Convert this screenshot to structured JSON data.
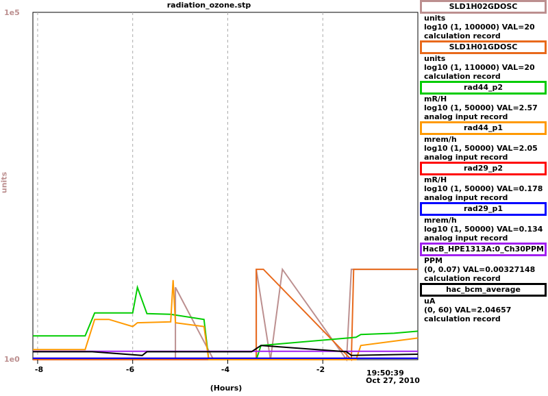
{
  "chart_data": {
    "type": "line",
    "title": "radiation_ozone.stp",
    "xlabel": "(Hours)",
    "ylabel": "units",
    "ylim": [
      1,
      100000
    ],
    "yscale": "log",
    "yticks": [
      "1e0",
      "1e5"
    ],
    "xticks": [
      "-8",
      "-6",
      "-4",
      "-2"
    ],
    "xlim": [
      -8.1,
      0
    ],
    "end_time": "19:50:39",
    "end_date": "Oct 27, 2010",
    "grid": true,
    "series": [
      {
        "name": "SLD1H02GDOSC",
        "color": "#bc8f8f",
        "x": [
          -8.1,
          -5.1,
          -5.1,
          -4.3,
          -3.4,
          -3.4,
          -3.1,
          -2.85,
          -1.5,
          -1.4,
          -1.3,
          -0.1,
          0
        ],
        "values": [
          1,
          1,
          11,
          1,
          1,
          20,
          1,
          20,
          1,
          20,
          20,
          20,
          20
        ]
      },
      {
        "name": "SLD1H01GDOSC",
        "color": "#e8691b",
        "x": [
          -8.1,
          -3.4,
          -3.4,
          -3.25,
          -1.4,
          -1.35,
          0
        ],
        "values": [
          1,
          1,
          20,
          20,
          1,
          20,
          20
        ]
      },
      {
        "name": "rad44_p2",
        "color": "#00cc00",
        "x": [
          -8.1,
          -7.0,
          -6.8,
          -6.0,
          -5.9,
          -5.7,
          -5.2,
          -4.5,
          -4.4,
          -3.4,
          -3.3,
          -1.3,
          -1.2,
          -0.5,
          0
        ],
        "values": [
          2.2,
          2.2,
          4.7,
          4.7,
          11,
          4.6,
          4.5,
          3.8,
          1,
          1,
          1.6,
          2.1,
          2.3,
          2.4,
          2.57
        ]
      },
      {
        "name": "rad44_p1",
        "color": "#ff9900",
        "x": [
          -8.1,
          -7.0,
          -6.8,
          -6.5,
          -6.0,
          -5.9,
          -5.2,
          -5.15,
          -5.1,
          -4.5,
          -4.4,
          -1.3,
          -1.2,
          0
        ],
        "values": [
          1.4,
          1.4,
          3.8,
          3.8,
          3.0,
          3.4,
          3.5,
          14,
          3.4,
          3.0,
          1,
          1,
          1.6,
          2.05
        ]
      },
      {
        "name": "rad29_p2",
        "color": "#ff0000",
        "x": [
          -8.1,
          0
        ],
        "values": [
          1.05,
          1.05
        ]
      },
      {
        "name": "rad29_p1",
        "color": "#0000ff",
        "x": [
          -8.1,
          0
        ],
        "values": [
          1.05,
          1.05
        ]
      },
      {
        "name": "HacB_HPE1313A:0_Ch30PPM",
        "color": "#a020f0",
        "x": [
          -8.1,
          -4,
          0
        ],
        "values": [
          1.32,
          1.32,
          1.32
        ]
      },
      {
        "name": "hac_bcm_average",
        "color": "#000000",
        "x": [
          -8.1,
          -6.9,
          -6.85,
          -5.8,
          -5.7,
          -3.5,
          -3.3,
          -1.5,
          -1.4,
          0
        ],
        "values": [
          1.3,
          1.3,
          1.3,
          1.15,
          1.3,
          1.3,
          1.6,
          1.3,
          1.15,
          1.2
        ]
      }
    ]
  },
  "legend": [
    {
      "name": "SLD1H02GDOSC",
      "color": "#bc8f8f",
      "units": "units",
      "range": "log10 (1, 100000) VAL=20",
      "type": "calculation record"
    },
    {
      "name": "SLD1H01GDOSC",
      "color": "#e8691b",
      "units": "units",
      "range": "log10 (1, 110000) VAL=20",
      "type": "calculation record"
    },
    {
      "name": "rad44_p2",
      "color": "#00cc00",
      "units": "mR/H",
      "range": "log10 (1, 50000) VAL=2.57",
      "type": "analog input record"
    },
    {
      "name": "rad44_p1",
      "color": "#ff9900",
      "units": "mrem/h",
      "range": "log10 (1, 50000) VAL=2.05",
      "type": "analog input record"
    },
    {
      "name": "rad29_p2",
      "color": "#ff0000",
      "units": "mR/H",
      "range": "log10 (1, 50000) VAL=0.178",
      "type": "analog input record"
    },
    {
      "name": "rad29_p1",
      "color": "#0000ff",
      "units": "mrem/h",
      "range": "log10 (1, 50000) VAL=0.134",
      "type": "analog input record"
    },
    {
      "name": "HacB_HPE1313A:0_Ch30PPM",
      "color": "#a020f0",
      "units": "PPM",
      "range": "(0, 0.07) VAL=0.00327148",
      "type": "calculation record"
    },
    {
      "name": "hac_bcm_average",
      "color": "#000000",
      "units": "uA",
      "range": "(0, 60) VAL=2.04657",
      "type": "calculation record"
    }
  ]
}
